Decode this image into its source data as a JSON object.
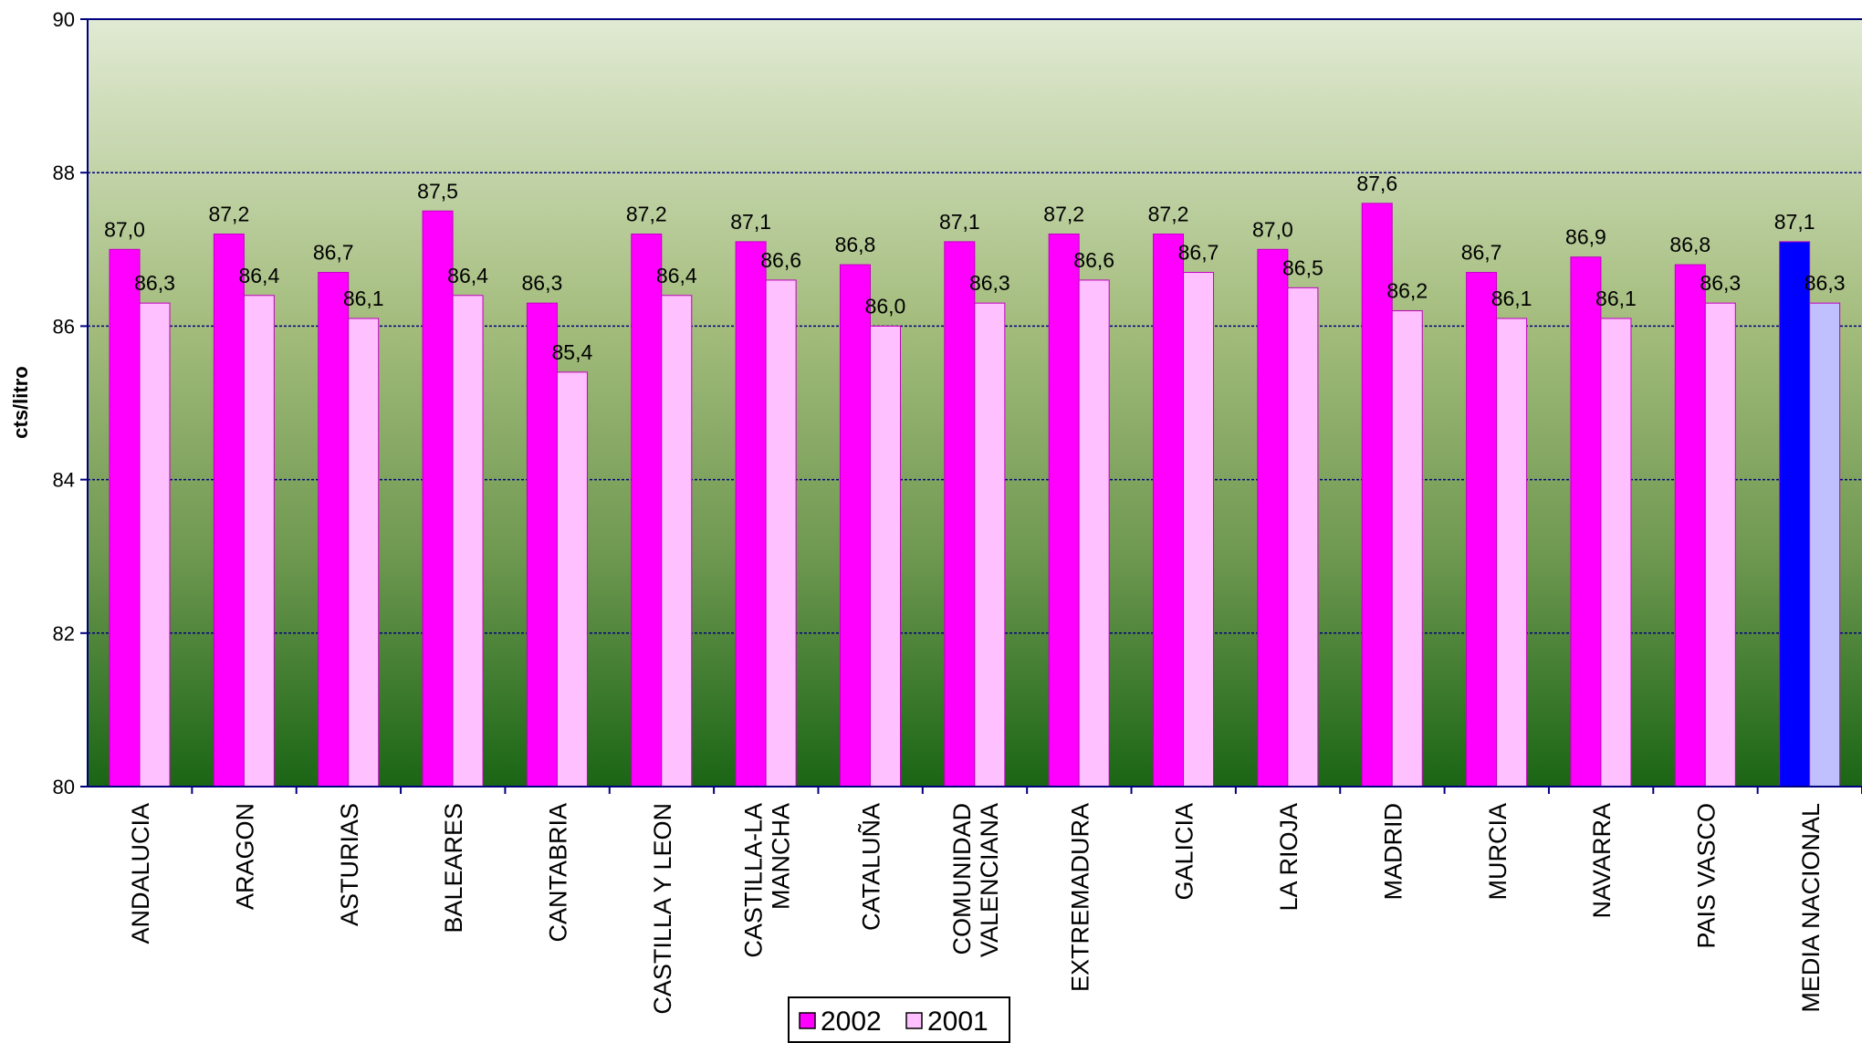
{
  "chart_data": {
    "type": "bar",
    "ylabel": "cts/litro",
    "ylim": [
      80,
      90
    ],
    "yticks": [
      80,
      82,
      84,
      86,
      88,
      90
    ],
    "grid": true,
    "legend_position": "bottom-center",
    "categories": [
      [
        "ANDALUCIA"
      ],
      [
        "ARAGON"
      ],
      [
        "ASTURIAS"
      ],
      [
        "BALEARES"
      ],
      [
        "CANTABRIA"
      ],
      [
        "CASTILLA Y LEON"
      ],
      [
        "CASTILLA-LA",
        "MANCHA"
      ],
      [
        "CATALUÑA"
      ],
      [
        "COMUNIDAD",
        "VALENCIANA"
      ],
      [
        "EXTREMADURA"
      ],
      [
        "GALICIA"
      ],
      [
        "LA RIOJA"
      ],
      [
        "MADRID"
      ],
      [
        "MURCIA"
      ],
      [
        "NAVARRA"
      ],
      [
        "PAIS VASCO"
      ],
      [
        "MEDIA NACIONAL"
      ]
    ],
    "series": [
      {
        "name": "2002",
        "color": "#ff00ff",
        "highlight_color": "#0000ff",
        "values": [
          87.0,
          87.2,
          86.7,
          87.5,
          86.3,
          87.2,
          87.1,
          86.8,
          87.1,
          87.2,
          87.2,
          87.0,
          87.6,
          86.7,
          86.9,
          86.8,
          87.1
        ],
        "labels": [
          "87,0",
          "87,2",
          "86,7",
          "87,5",
          "86,3",
          "87,2",
          "87,1",
          "86,8",
          "87,1",
          "87,2",
          "87,2",
          "87,0",
          "87,6",
          "86,7",
          "86,9",
          "86,8",
          "87,1"
        ]
      },
      {
        "name": "2001",
        "color": "#ffc0ff",
        "highlight_color": "#c0c0ff",
        "values": [
          86.3,
          86.4,
          86.1,
          86.4,
          85.4,
          86.4,
          86.6,
          86.0,
          86.3,
          86.6,
          86.7,
          86.5,
          86.2,
          86.1,
          86.1,
          86.3,
          86.3
        ],
        "labels": [
          "86,3",
          "86,4",
          "86,1",
          "86,4",
          "85,4",
          "86,4",
          "86,6",
          "86,0",
          "86,3",
          "86,6",
          "86,7",
          "86,5",
          "86,2",
          "86,1",
          "86,1",
          "86,3",
          "86,3"
        ]
      }
    ],
    "highlight_category_index": 16,
    "background_gradient": [
      "#e1ead3",
      "#a3bc7c",
      "#6e9850",
      "#1a6515"
    ]
  }
}
